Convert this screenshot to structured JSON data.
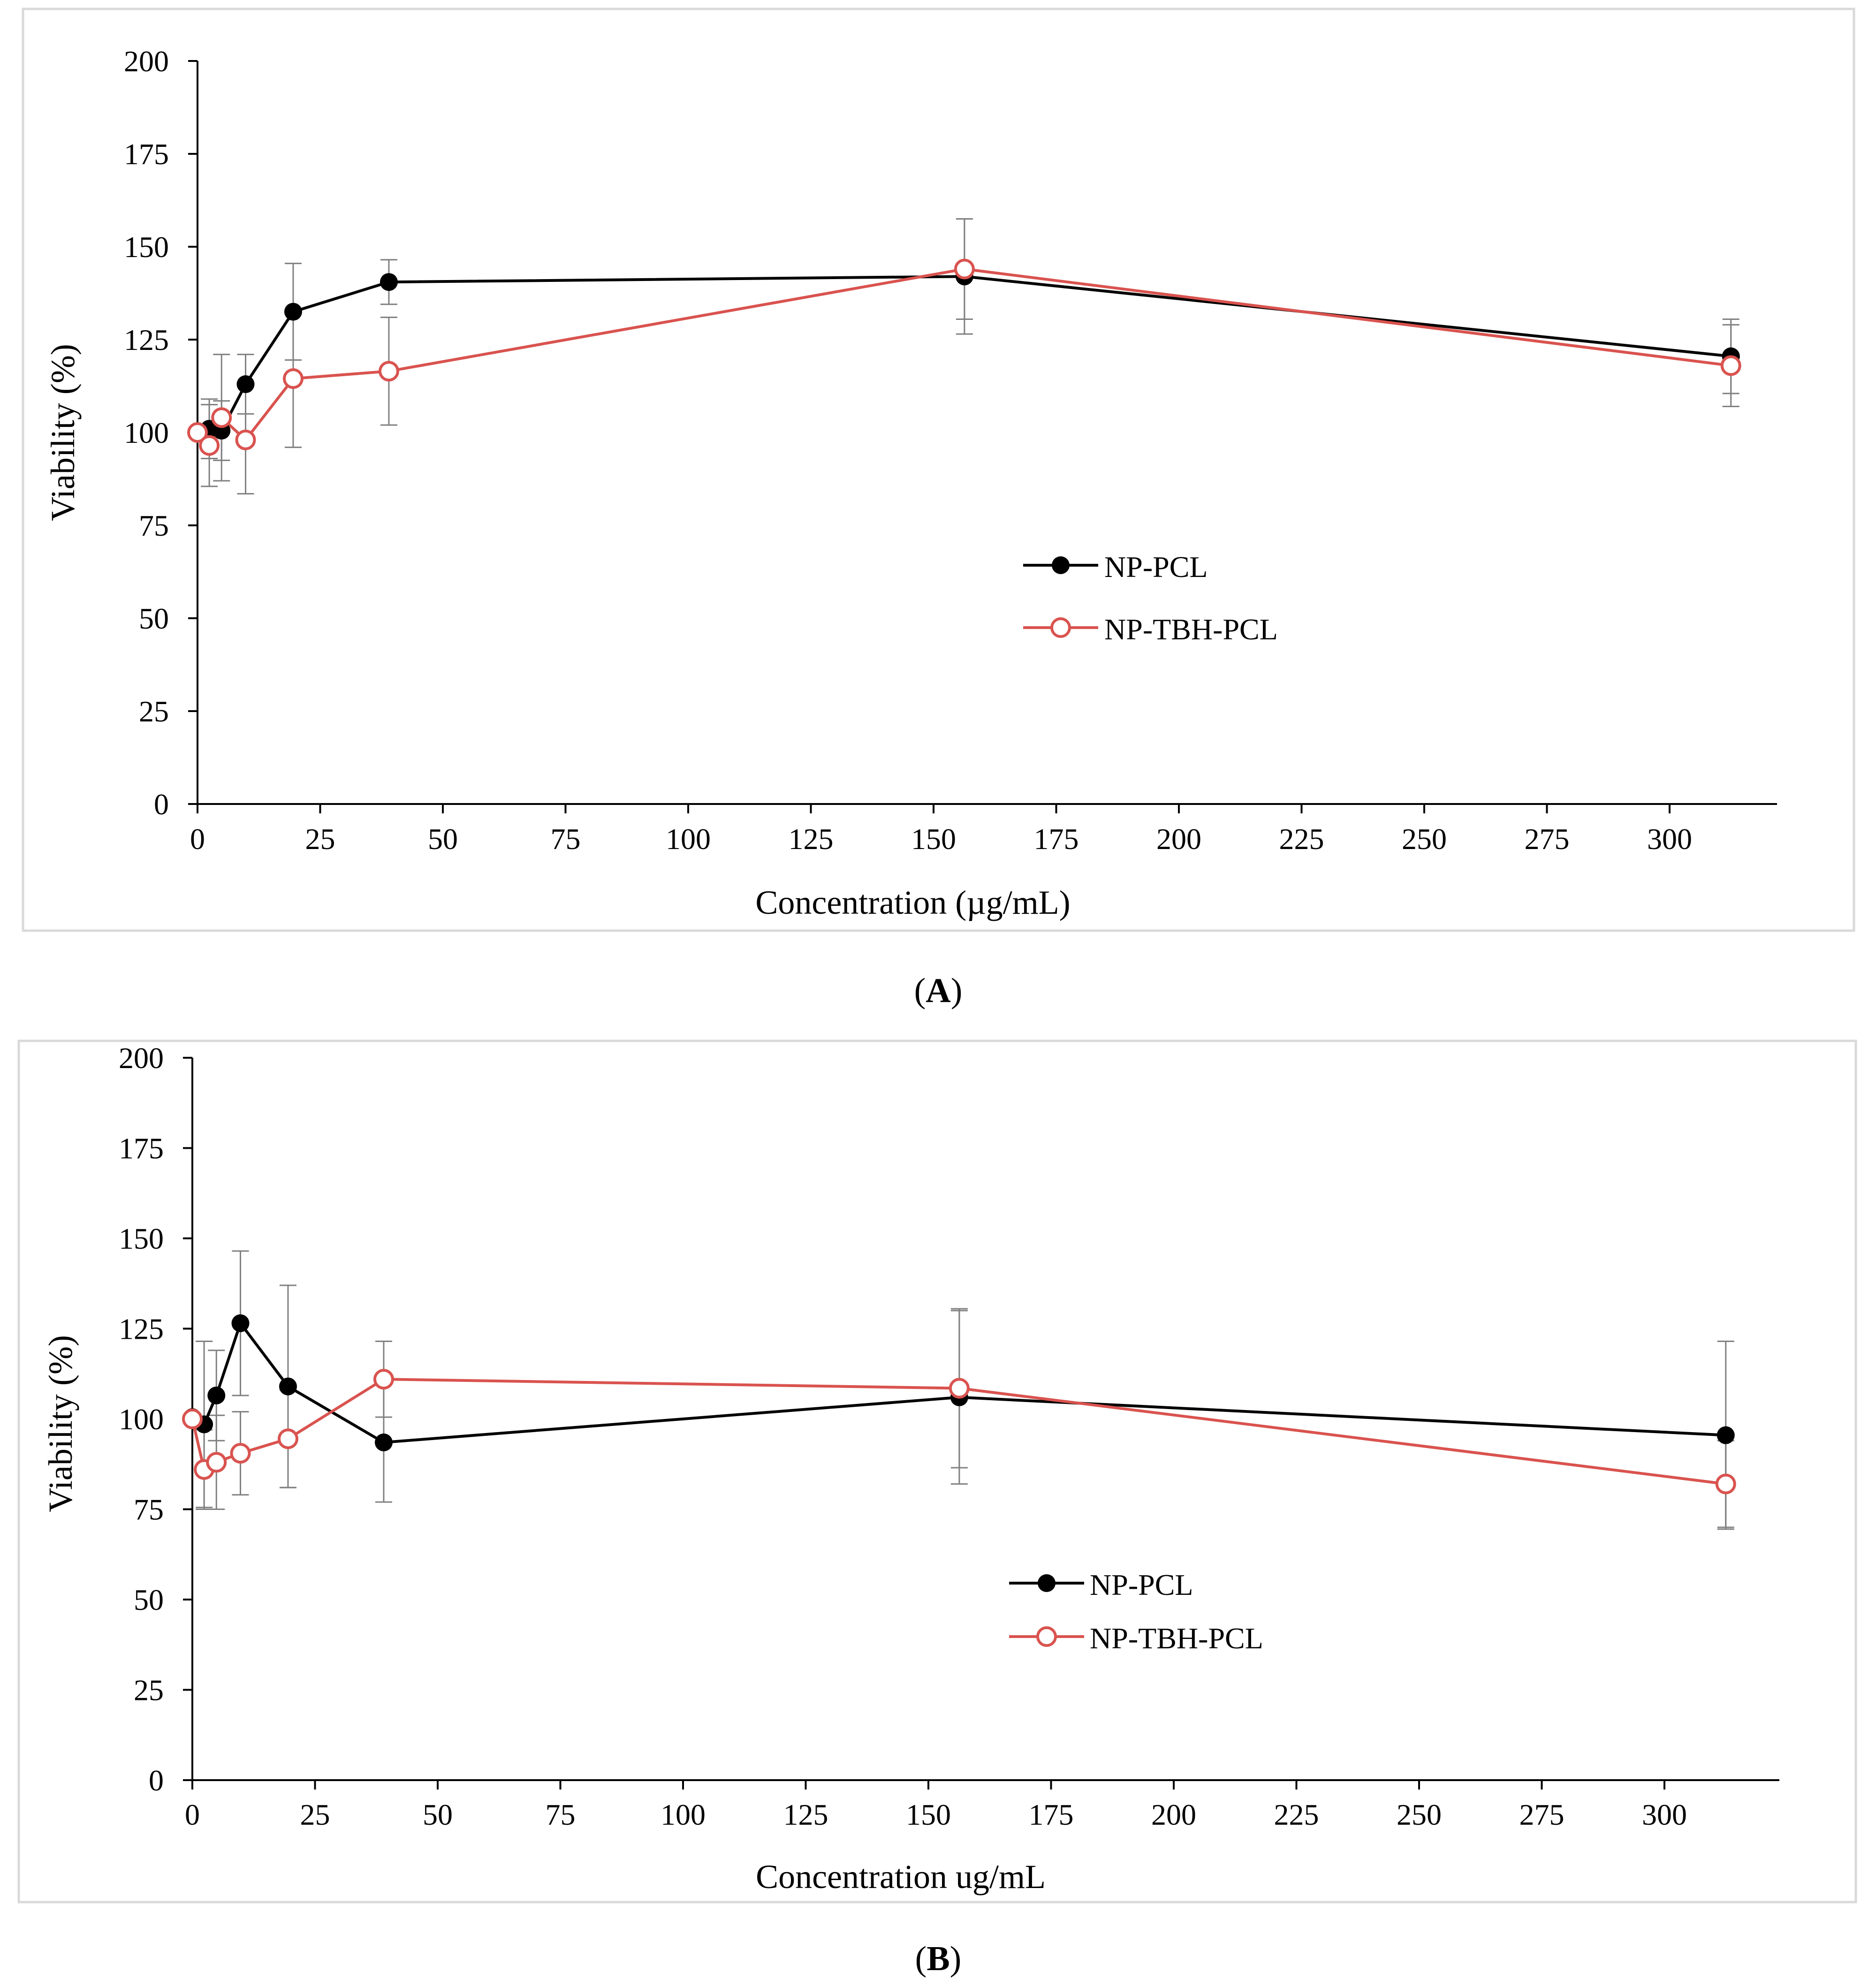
{
  "chart_data": [
    {
      "type": "line",
      "panel_label": "A",
      "xlabel": "Concentration (µg/mL)",
      "ylabel": "Viability (%)",
      "xlim": [
        0,
        320
      ],
      "ylim": [
        0,
        200
      ],
      "xticks": [
        0,
        25,
        50,
        75,
        100,
        125,
        150,
        175,
        200,
        225,
        250,
        275,
        300
      ],
      "yticks": [
        0,
        25,
        50,
        75,
        100,
        125,
        150,
        175,
        200
      ],
      "grid": false,
      "legend_position": "center-right",
      "series": [
        {
          "name": "NP-PCL",
          "color": "#000000",
          "marker": "filled-circle",
          "x": [
            0,
            2.4,
            4.9,
            9.8,
            19.5,
            39,
            156.3,
            312.5
          ],
          "y": [
            100,
            101,
            100.5,
            113,
            132.5,
            140.5,
            142,
            120.5
          ],
          "err": [
            0,
            8,
            8,
            8,
            13,
            6,
            15.5,
            10
          ]
        },
        {
          "name": "NP-TBH-PCL",
          "color": "#d9534f",
          "marker": "open-circle",
          "x": [
            0,
            2.4,
            4.9,
            9.8,
            19.5,
            39,
            156.3,
            312.5
          ],
          "y": [
            100,
            96.5,
            104,
            98,
            114.5,
            116.5,
            144,
            118
          ],
          "err": [
            0,
            11,
            17,
            14.5,
            18.5,
            14.5,
            13.5,
            11
          ]
        }
      ]
    },
    {
      "type": "line",
      "panel_label": "B",
      "xlabel": "Concentration ug/mL",
      "ylabel": "Viability (%)",
      "xlim": [
        0,
        320
      ],
      "ylim": [
        0,
        200
      ],
      "xticks": [
        0,
        25,
        50,
        75,
        100,
        125,
        150,
        175,
        200,
        225,
        250,
        275,
        300
      ],
      "yticks": [
        0,
        25,
        50,
        75,
        100,
        125,
        150,
        175,
        200
      ],
      "grid": false,
      "legend_position": "center-right",
      "series": [
        {
          "name": "NP-PCL",
          "color": "#000000",
          "marker": "filled-circle",
          "x": [
            0,
            2.4,
            4.9,
            9.8,
            19.5,
            39,
            156.3,
            312.5
          ],
          "y": [
            100.5,
            98.5,
            106.5,
            126.5,
            109,
            93.5,
            106,
            95.5
          ],
          "err": [
            0,
            23,
            12.5,
            20,
            28,
            16.5,
            24,
            26
          ]
        },
        {
          "name": "NP-TBH-PCL",
          "color": "#d9534f",
          "marker": "open-circle",
          "x": [
            0,
            2.4,
            4.9,
            9.8,
            19.5,
            39,
            156.3,
            312.5
          ],
          "y": [
            100,
            86,
            88,
            90.5,
            94.5,
            111,
            108.5,
            82
          ],
          "err": [
            0,
            11,
            13,
            11.5,
            13.5,
            10.5,
            22,
            12
          ]
        }
      ]
    }
  ]
}
